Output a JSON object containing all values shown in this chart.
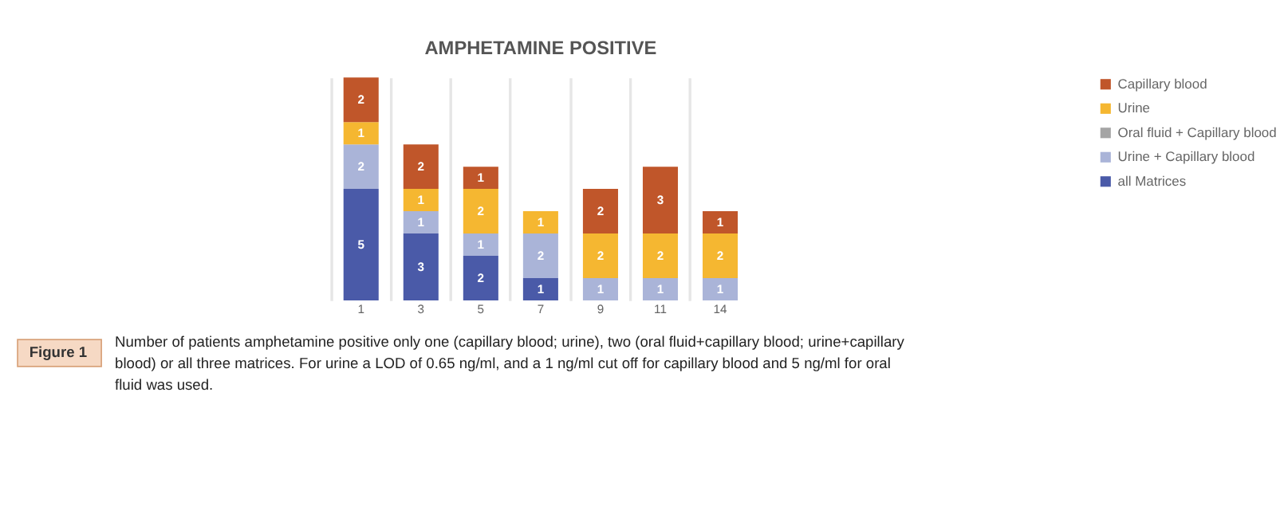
{
  "chart_data": {
    "type": "bar",
    "stacked": true,
    "title": "AMPHETAMINE POSITIVE",
    "categories": [
      "1",
      "3",
      "5",
      "7",
      "9",
      "11",
      "14"
    ],
    "series": [
      {
        "name": "all Matrices",
        "color": "#4a5aa8",
        "values": [
          5,
          3,
          2,
          1,
          null,
          null,
          null
        ]
      },
      {
        "name": "Urine + Capillary blood",
        "color": "#aab4d8",
        "values": [
          2,
          1,
          1,
          2,
          1,
          1,
          1
        ]
      },
      {
        "name": "Oral fluid + Capillary blood",
        "color": "#a5a5a5",
        "values": [
          null,
          null,
          null,
          null,
          null,
          null,
          null
        ]
      },
      {
        "name": "Urine",
        "color": "#f5b731",
        "values": [
          1,
          1,
          2,
          1,
          2,
          2,
          2
        ]
      },
      {
        "name": "Capillary blood",
        "color": "#c0562a",
        "values": [
          2,
          2,
          1,
          null,
          2,
          3,
          1
        ]
      }
    ],
    "data_labels": true,
    "grid": "x",
    "legend": "right",
    "annotations": [
      "Figure 1",
      "Number of patients amphetamine positive only one (capillary blood; urine), two (oral fluid+capillary blood; urine+capillary blood) or all three matrices. For urine a LOD of 0.65 ng/ml, and a 1 ng/ml cut off for capillary blood and 5 ng/ml for oral fluid was used."
    ]
  }
}
